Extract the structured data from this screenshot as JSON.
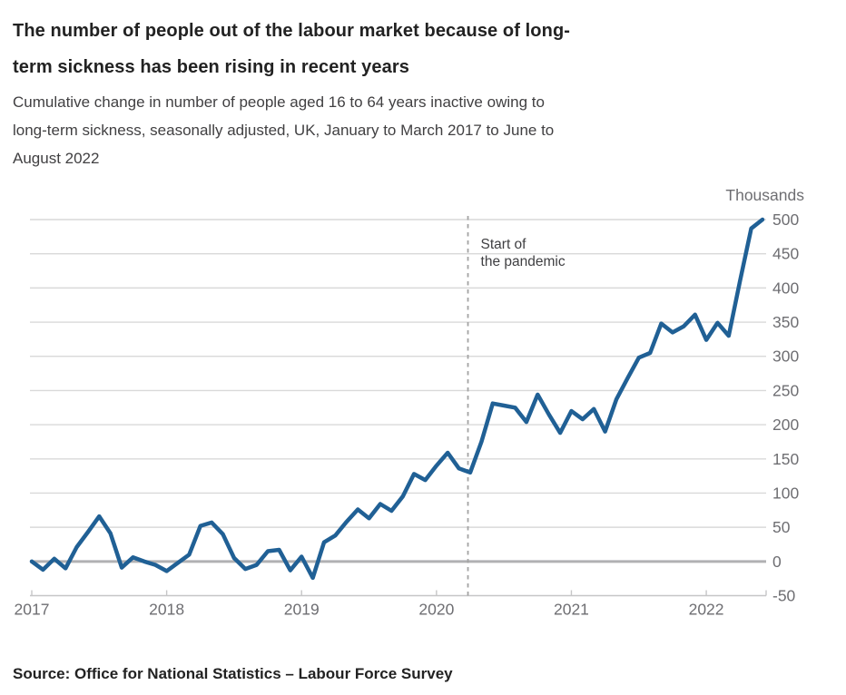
{
  "page": {
    "title": {
      "text": "The number of people out of the labour market because of long-term sickness has been rising in recent years",
      "lines": [
        "The number of people out of the labour market because of long-",
        "term sickness has been rising in recent years"
      ]
    },
    "subtitle": {
      "text": "Cumulative change in number of people aged 16 to 64 years inactive owing to long-term sickness, seasonally adjusted, UK, January to March 2017 to June to August 2022",
      "lines": [
        "Cumulative change in number of people aged 16 to 64 years inactive owing to",
        "long-term sickness, seasonally adjusted, UK, January to March 2017 to June to",
        "August 2022"
      ]
    },
    "unit_label": "Thousands",
    "source": "Source: Office for National Statistics – Labour Force Survey"
  },
  "chart_data": {
    "type": "line",
    "title": "The number of people out of the labour market because of long-term sickness has been rising in recent years",
    "subtitle": "Cumulative change in number of people aged 16 to 64 years inactive owing to long-term sickness, seasonally adjusted, UK, January to March 2017 to June to August 2022",
    "unit": "Thousands",
    "x_start_period": "January to March 2017",
    "x_end_period": "June to August 2022",
    "x_tick_labels": [
      "2017",
      "2018",
      "2019",
      "2020",
      "2021",
      "2022"
    ],
    "points_per_year": 12,
    "y_ticks": [
      -50,
      0,
      50,
      100,
      150,
      200,
      250,
      300,
      350,
      400,
      450,
      500
    ],
    "ylim": [
      -50,
      500
    ],
    "grid": true,
    "legend": "none",
    "y_axis_side": "right",
    "series": [
      {
        "name": "Cumulative change in inactivity owing to long-term sickness (thousands)",
        "values": [
          0,
          -12,
          4,
          -10,
          21,
          43,
          66,
          41,
          -9,
          6,
          0,
          -5,
          -14,
          -2,
          10,
          52,
          57,
          40,
          5,
          -11,
          -5,
          15,
          17,
          -13,
          7,
          -24,
          28,
          38,
          58,
          76,
          63,
          84,
          74,
          95,
          128,
          119,
          140,
          159,
          136,
          130,
          175,
          231,
          228,
          225,
          204,
          244,
          215,
          188,
          220,
          208,
          223,
          190,
          237,
          268,
          298,
          305,
          348,
          335,
          344,
          361,
          324,
          349,
          330,
          410,
          487,
          500
        ]
      }
    ],
    "annotation": {
      "line1": "Start of",
      "line2": "the pandemic",
      "x_index": 38.8,
      "style": "dashed-vertical-line"
    },
    "colors": {
      "line": "#206095",
      "grid_line": "#d9d9d9",
      "zero_line": "#b1b1b3",
      "axis_line": "#c6c6c7",
      "axis_text": "#6e6e72",
      "annotation_line": "#a3a3a3",
      "annotation_text": "#3f3f42"
    }
  }
}
